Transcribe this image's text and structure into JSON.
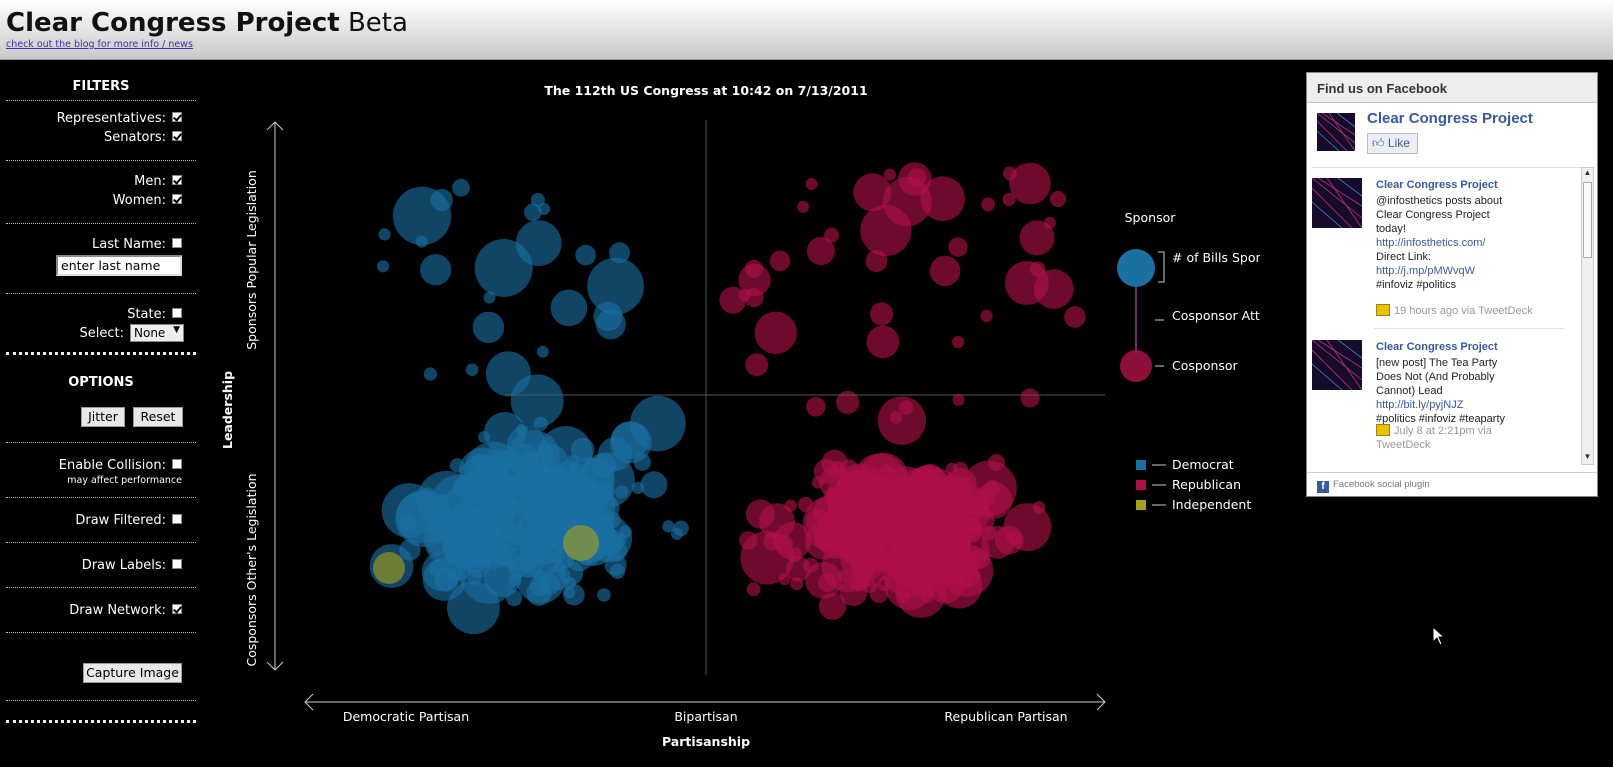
{
  "header": {
    "title": "Clear Congress Project",
    "title_suffix": "Beta",
    "blog_link": "check out the blog for more info / news"
  },
  "sidebar": {
    "filters_heading": "FILTERS",
    "representatives": {
      "label": "Representatives:",
      "checked": true
    },
    "senators": {
      "label": "Senators:",
      "checked": true
    },
    "men": {
      "label": "Men:",
      "checked": true
    },
    "women": {
      "label": "Women:",
      "checked": true
    },
    "last_name": {
      "label": "Last Name:",
      "checked": false,
      "value": "enter last name"
    },
    "state": {
      "label": "State:",
      "checked": false
    },
    "select": {
      "label": "Select:",
      "value": "None"
    },
    "options_heading": "OPTIONS",
    "jitter_label": "Jitter",
    "reset_label": "Reset",
    "enable_collision": {
      "label": "Enable Collision:",
      "checked": false,
      "note": "may affect performance"
    },
    "draw_filtered": {
      "label": "Draw Filtered:",
      "checked": false
    },
    "draw_labels": {
      "label": "Draw Labels:",
      "checked": false
    },
    "draw_network": {
      "label": "Draw Network:",
      "checked": true
    },
    "capture_label": "Capture Image"
  },
  "chart_data": {
    "type": "scatter",
    "title": "The 112th US Congress at 10:42 on 7/13/2011",
    "xlabel": "Partisanship",
    "ylabel": "Leadership",
    "x_tick_labels": [
      "Democratic Partisan",
      "Bipartisan",
      "Republican Partisan"
    ],
    "y_tick_labels": [
      "Sponsors Popular Legislation",
      "Cosponsors Other's Legislation"
    ],
    "legend": {
      "size_title": "Sponsor",
      "size_labels": [
        "# of Bills Sponsored",
        "Cosponsor Attracted",
        "Cosponsor"
      ],
      "parties": [
        {
          "name": "Democrat",
          "color": "#1a6fa3"
        },
        {
          "name": "Republican",
          "color": "#b0104a"
        },
        {
          "name": "Independent",
          "color": "#a6a01a"
        }
      ]
    },
    "series": [
      {
        "name": "Democrat",
        "color": "#1a6fa3",
        "count": 260
      },
      {
        "name": "Republican",
        "color": "#b0104a",
        "count": 300
      },
      {
        "name": "Independent",
        "color": "#a6a01a",
        "count": 2
      }
    ]
  },
  "facebook": {
    "heading": "Find us on Facebook",
    "page_name": "Clear Congress Project",
    "like_label": "Like",
    "posts": [
      {
        "name": "Clear Congress Project",
        "lines": [
          "@infosthetics posts about",
          "Clear Congress Project",
          "today!"
        ],
        "link1": "http://infosthetics.com/",
        "mid": "Direct Link:",
        "link2": "http://j.mp/pMWvqW",
        "tags": "#infoviz #politics",
        "meta": "19 hours ago via TweetDeck"
      },
      {
        "name": "Clear Congress Project",
        "lines": [
          "[new post] The Tea Party",
          "Does Not (And Probably",
          "Cannot) Lead"
        ],
        "link1": "http://bit.ly/pyjNJZ",
        "tags": "#politics #infoviz #teaparty",
        "meta": "July 8 at 2:21pm via TweetDeck"
      }
    ],
    "footer": "Facebook social plugin"
  }
}
